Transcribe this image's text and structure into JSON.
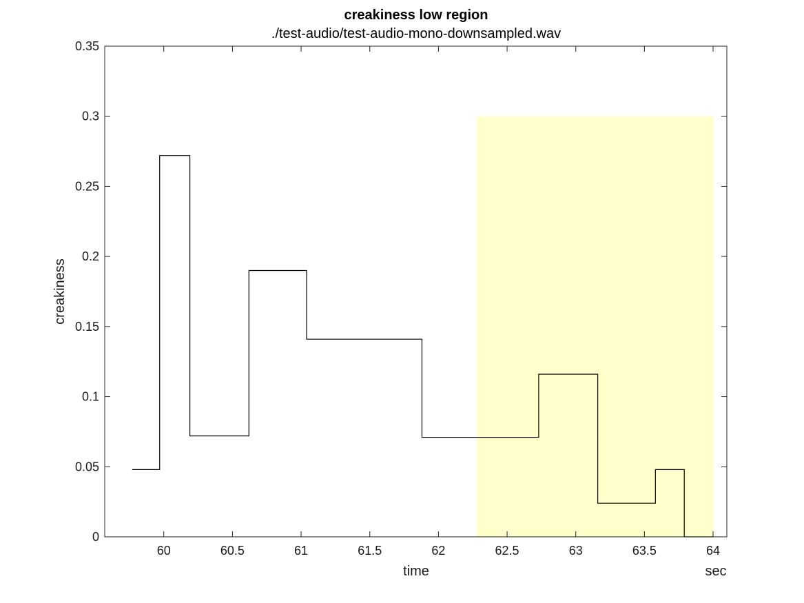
{
  "chart_data": {
    "type": "line",
    "title": "creakiness low region",
    "subtitle": "./test-audio/test-audio-mono-downsampled.wav",
    "xlabel": "time",
    "ylabel": "creakiness",
    "x_unit": "sec",
    "xlim": [
      59.57,
      64.1
    ],
    "ylim": [
      0,
      0.35
    ],
    "xticks": [
      60,
      60.5,
      61,
      61.5,
      62,
      62.5,
      63,
      63.5,
      64
    ],
    "xtick_labels": [
      "60",
      "60.5",
      "61",
      "61.5",
      "62",
      "62.5",
      "63",
      "63.5",
      "64"
    ],
    "yticks": [
      0,
      0.05,
      0.1,
      0.15,
      0.2,
      0.25,
      0.3,
      0.35
    ],
    "ytick_labels": [
      "0",
      "0.05",
      "0.1",
      "0.15",
      "0.2",
      "0.25",
      "0.3",
      "0.35"
    ],
    "grid": false,
    "highlight_region": {
      "x": [
        62.28,
        64.0
      ],
      "y": [
        0,
        0.3
      ],
      "color": "#ffffcc"
    },
    "series": [
      {
        "line_color": "#000000",
        "x": [
          59.77,
          59.97,
          59.97,
          60.19,
          60.19,
          60.62,
          60.62,
          61.04,
          61.04,
          61.88,
          61.88,
          62.73,
          62.73,
          63.16,
          63.16,
          63.58,
          63.58,
          63.79,
          63.79,
          64.0
        ],
        "y": [
          0.048,
          0.048,
          0.272,
          0.272,
          0.072,
          0.072,
          0.19,
          0.19,
          0.141,
          0.141,
          0.071,
          0.071,
          0.116,
          0.116,
          0.024,
          0.024,
          0.048,
          0.048,
          0.0,
          0.0
        ]
      }
    ]
  }
}
